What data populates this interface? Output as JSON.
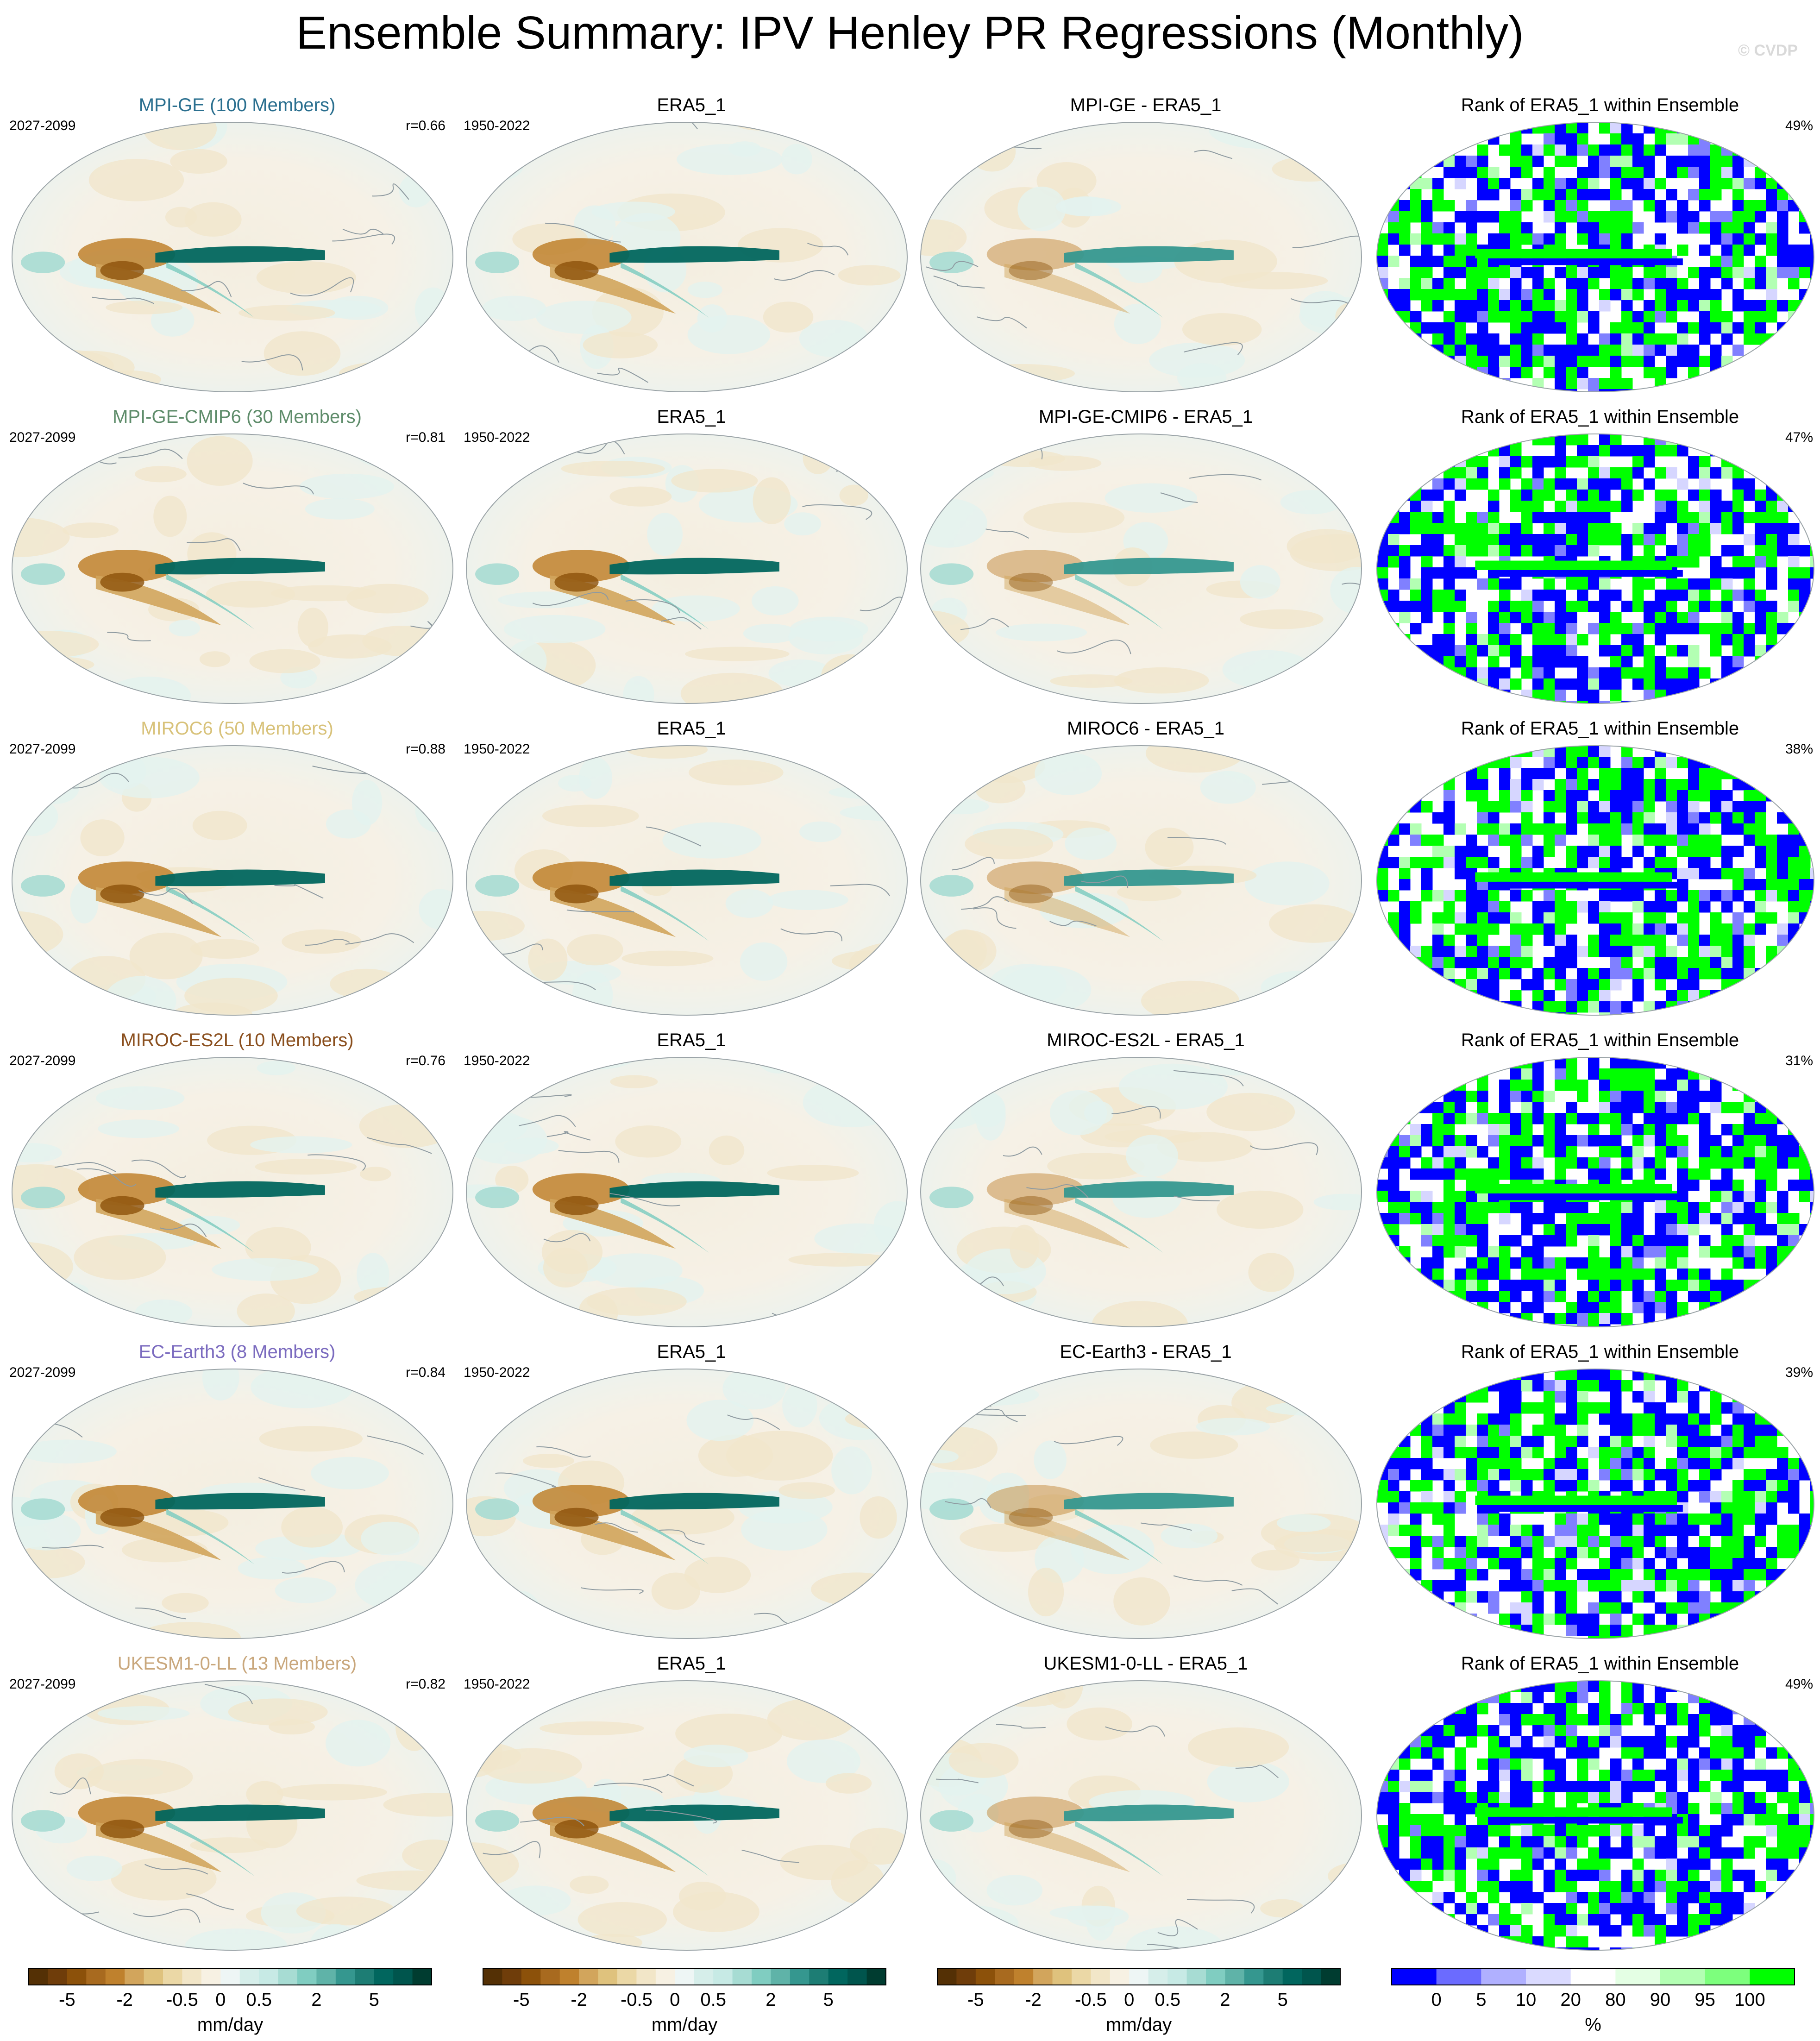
{
  "title": "Ensemble Summary: IPV Henley PR Regressions (Monthly)",
  "watermark": "© CVDP",
  "columns": {
    "observed_title": "ERA5_1",
    "observed_period": "1950-2022",
    "rank_title": "Rank of ERA5_1 within Ensemble"
  },
  "rows": [
    {
      "model_title": "MPI-GE (100 Members)",
      "title_color": "#2a6f8f",
      "period": "2027-2099",
      "r": "r=0.66",
      "diff_title": "MPI-GE - ERA5_1",
      "rank_pct": "49%"
    },
    {
      "model_title": "MPI-GE-CMIP6 (30 Members)",
      "title_color": "#5e8c6a",
      "period": "2027-2099",
      "r": "r=0.81",
      "diff_title": "MPI-GE-CMIP6 - ERA5_1",
      "rank_pct": "47%"
    },
    {
      "model_title": "MIROC6 (50 Members)",
      "title_color": "#d8c27a",
      "period": "2027-2099",
      "r": "r=0.88",
      "diff_title": "MIROC6 - ERA5_1",
      "rank_pct": "38%"
    },
    {
      "model_title": "MIROC-ES2L (10 Members)",
      "title_color": "#8a4f1e",
      "period": "2027-2099",
      "r": "r=0.76",
      "diff_title": "MIROC-ES2L - ERA5_1",
      "rank_pct": "31%"
    },
    {
      "model_title": "EC-Earth3 (8 Members)",
      "title_color": "#7b6bbf",
      "period": "2027-2099",
      "r": "r=0.84",
      "diff_title": "EC-Earth3 - ERA5_1",
      "rank_pct": "39%"
    },
    {
      "model_title": "UKESM1-0-LL (13 Members)",
      "title_color": "#c9a77c",
      "period": "2027-2099",
      "r": "r=0.82",
      "diff_title": "UKESM1-0-LL - ERA5_1",
      "rank_pct": "49%"
    }
  ],
  "colorbars": {
    "pr": {
      "unit": "mm/day",
      "colors": [
        "#543005",
        "#6f3d0a",
        "#8c510a",
        "#a86a1f",
        "#bf812d",
        "#d2a55c",
        "#dfc27d",
        "#ebd8a6",
        "#f2e6c8",
        "#f7f1e3",
        "#eef6f5",
        "#d6eeea",
        "#c7eae5",
        "#a7dcd3",
        "#80cdc1",
        "#5fb3a8",
        "#35978f",
        "#1d7d74",
        "#01665e",
        "#00554d",
        "#003c30"
      ],
      "tick_labels": [
        "-5",
        "-2",
        "-0.5",
        "0",
        "0.5",
        "2",
        "5"
      ],
      "tick_boundaries": [
        2,
        5,
        8,
        10,
        12,
        15,
        18
      ]
    },
    "rank": {
      "unit": "%",
      "colors": [
        "#0000ff",
        "#6b6bff",
        "#b0b0ff",
        "#dadaff",
        "#ffffff",
        "#e4ffe4",
        "#b3ffb3",
        "#7dff7d",
        "#00ff00"
      ],
      "tick_labels": [
        "0",
        "5",
        "10",
        "20",
        "80",
        "90",
        "95",
        "100"
      ],
      "tick_boundaries": [
        1,
        2,
        3,
        4,
        5,
        6,
        7,
        8
      ]
    }
  },
  "chart_data": {
    "type": "heatmap",
    "projection": "Robinson (global map panels, 6 rows x 4 columns)",
    "panel_columns": [
      "model ensemble regression",
      "ERA5_1 regression",
      "model minus ERA5_1 difference",
      "rank of ERA5_1 within ensemble"
    ],
    "color_scale_pr": {
      "unit": "mm/day",
      "labeled_levels": [
        -5,
        -2,
        -0.5,
        0,
        0.5,
        2,
        5
      ]
    },
    "color_scale_rank": {
      "unit": "%",
      "labeled_levels": [
        0,
        5,
        10,
        20,
        80,
        90,
        95,
        100
      ]
    }
  }
}
